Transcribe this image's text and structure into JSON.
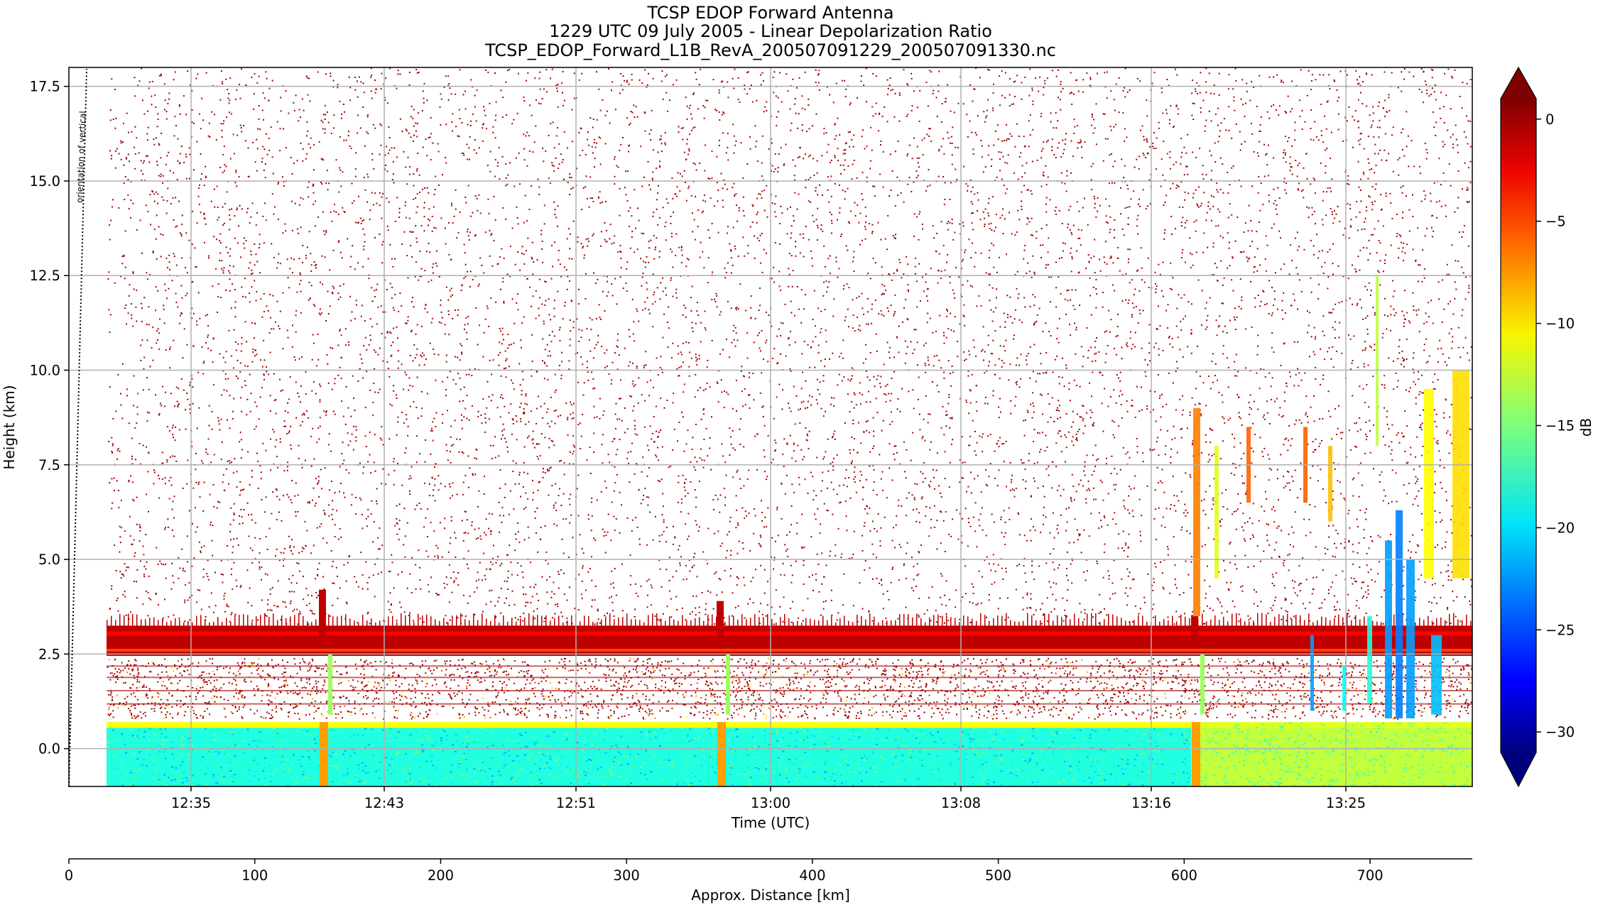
{
  "chart_data": {
    "type": "heatmap",
    "title_lines": [
      "TCSP EDOP Forward Antenna",
      "1229 UTC 09 July 2005 - Linear Depolarization Ratio",
      "TCSP_EDOP_Forward_L1B_RevA_200507091229_200507091330.nc"
    ],
    "xlabel": "Time (UTC)",
    "ylabel": "Height (km)",
    "x_ticks": [
      "12:35",
      "12:43",
      "12:51",
      "13:00",
      "13:08",
      "13:16",
      "13:25"
    ],
    "y_ticks": [
      "0.0",
      "2.5",
      "5.0",
      "7.5",
      "10.0",
      "12.5",
      "15.0",
      "17.5"
    ],
    "y_tick_values": [
      0.0,
      2.5,
      5.0,
      7.5,
      10.0,
      12.5,
      15.0,
      17.5
    ],
    "ylim": [
      -1.0,
      18.0
    ],
    "grid": true,
    "secondary_axis": {
      "label": "Approx. Distance [km]",
      "ticks": [
        "0",
        "100",
        "200",
        "300",
        "400",
        "500",
        "600",
        "700"
      ],
      "tick_values": [
        0,
        100,
        200,
        300,
        400,
        500,
        600,
        700
      ],
      "range": [
        0,
        755
      ]
    },
    "colorbar": {
      "label": "dB",
      "ticks": [
        "0",
        "−5",
        "−10",
        "−15",
        "−20",
        "−25",
        "−30"
      ],
      "tick_values": [
        0,
        -5,
        -10,
        -15,
        -20,
        -25,
        -30
      ],
      "range": [
        -31,
        1
      ],
      "colormap": "jet",
      "extend": "both"
    },
    "annotation": "orientation of vertical",
    "features": {
      "noise_level_db": 0,
      "surface_echo_band_km": [
        -1.0,
        0.7
      ],
      "surface_echo_db": -18,
      "bright_band_height_km": 2.9,
      "bright_band_db": -1,
      "aircraft_turns_utc": [
        "12:39",
        "12:57",
        "13:18"
      ],
      "convective_cells_utc": [
        "13:18",
        "13:21",
        "13:26",
        "13:27",
        "13:28",
        "13:30",
        "13:32"
      ],
      "convective_cell_db": -22
    }
  }
}
